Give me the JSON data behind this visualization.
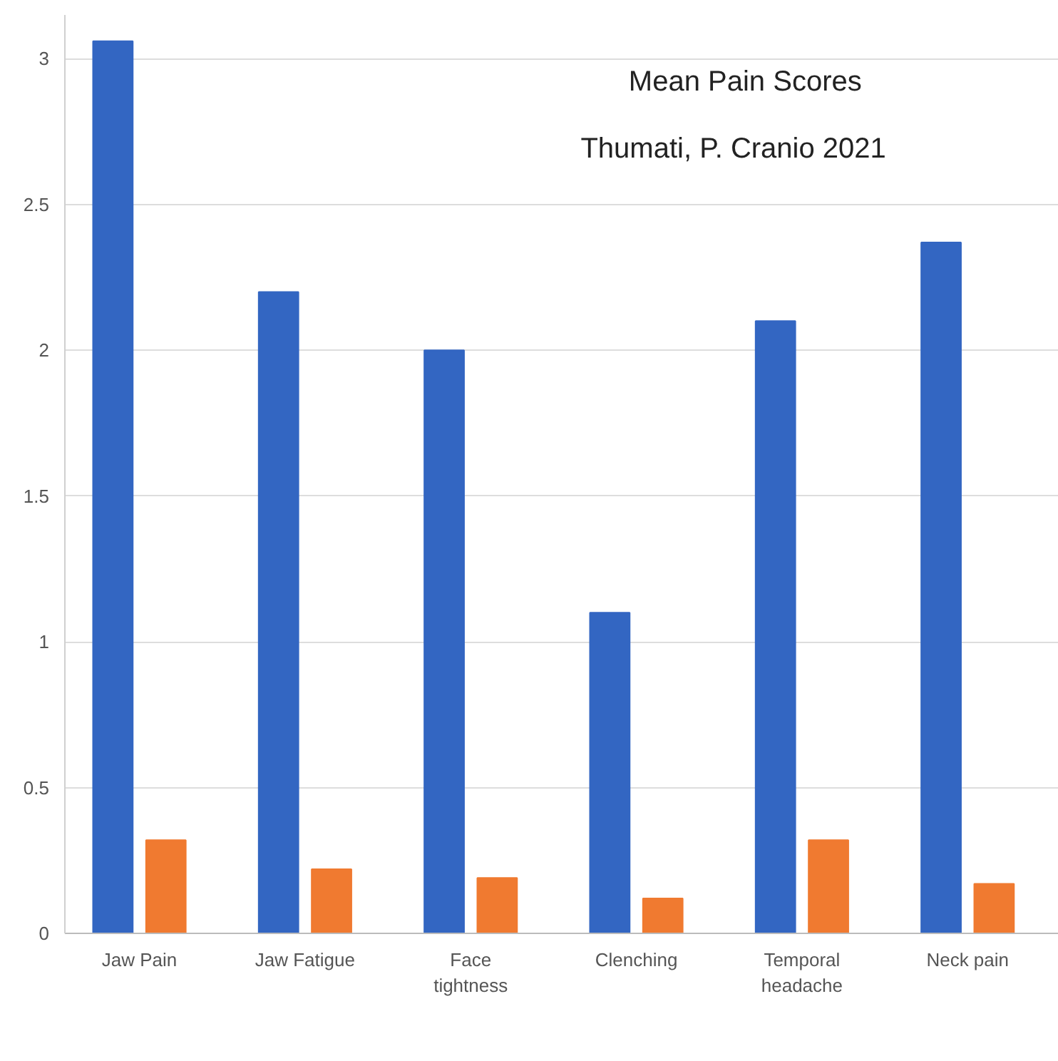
{
  "chart_data": {
    "type": "bar",
    "title": "Mean Pain Scores",
    "subtitle": "Thumati, P.   Cranio  2021",
    "categories": [
      "Jaw Pain",
      "Jaw Fatigue",
      "Face\ntightness",
      "Clenching",
      "Temporal\nheadache",
      "Neck pain"
    ],
    "series": [
      {
        "color": "#3366c2",
        "values": [
          3.06,
          2.2,
          2.0,
          1.1,
          2.1,
          2.37
        ]
      },
      {
        "color": "#f07a30",
        "values": [
          0.32,
          0.22,
          0.19,
          0.12,
          0.32,
          0.17
        ]
      }
    ],
    "ylim": [
      0,
      3.15
    ],
    "yticks": [
      0,
      0.5,
      1,
      1.5,
      2,
      2.5,
      3
    ],
    "grid": "y"
  }
}
